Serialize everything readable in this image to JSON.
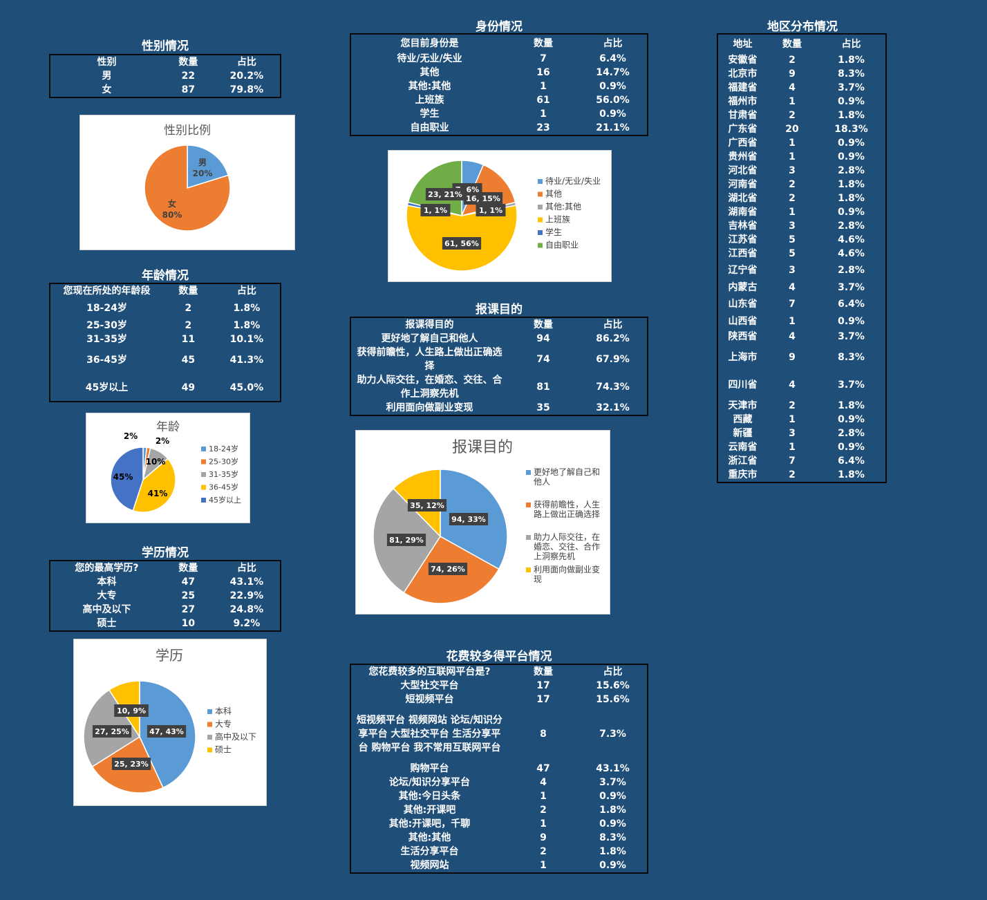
{
  "colors": {
    "blue": "#5b9bd5",
    "orange": "#ed7d31",
    "gray": "#a5a5a5",
    "gold": "#ffc000",
    "darkblue": "#4472c4",
    "green": "#70ad47",
    "bg": "#1f4e79"
  },
  "gender": {
    "title": "性别情况",
    "headers": [
      "性别",
      "数量",
      "占比"
    ],
    "rows": [
      [
        "男",
        "22",
        "20.2%"
      ],
      [
        "女",
        "87",
        "79.8%"
      ]
    ]
  },
  "age": {
    "title": "年龄情况",
    "headers": [
      "您现在所处的年龄段",
      "数量",
      "占比"
    ],
    "rows": [
      [
        "18-24岁",
        "2",
        "1.8%"
      ],
      [
        "25-30岁",
        "2",
        "1.8%"
      ],
      [
        "31-35岁",
        "11",
        "10.1%"
      ],
      [
        "36-45岁",
        "45",
        "41.3%"
      ],
      [
        "45岁以上",
        "49",
        "45.0%"
      ]
    ]
  },
  "education": {
    "title": "学历情况",
    "headers": [
      "您的最高学历?",
      "数量",
      "占比"
    ],
    "rows": [
      [
        "本科",
        "47",
        "43.1%"
      ],
      [
        "大专",
        "25",
        "22.9%"
      ],
      [
        "高中及以下",
        "27",
        "24.8%"
      ],
      [
        "硕士",
        "10",
        "9.2%"
      ]
    ]
  },
  "identity": {
    "title": "身份情况",
    "headers": [
      "您目前身份是",
      "数量",
      "占比"
    ],
    "rows": [
      [
        "待业/无业/失业",
        "7",
        "6.4%"
      ],
      [
        "其他",
        "16",
        "14.7%"
      ],
      [
        "其他:其他",
        "1",
        "0.9%"
      ],
      [
        "上班族",
        "61",
        "56.0%"
      ],
      [
        "学生",
        "1",
        "0.9%"
      ],
      [
        "自由职业",
        "23",
        "21.1%"
      ]
    ]
  },
  "purpose": {
    "title": "报课目的",
    "headers": [
      "报课得目的",
      "数量",
      "占比"
    ],
    "rows": [
      [
        "更好地了解自己和他人",
        "94",
        "86.2%"
      ],
      [
        "获得前瞻性，人生路上做出正确选择",
        "74",
        "67.9%"
      ],
      [
        "助力人际交往，在婚恋、交往、合作上洞察先机",
        "81",
        "74.3%"
      ],
      [
        "利用面向做副业变现",
        "35",
        "32.1%"
      ]
    ]
  },
  "platform": {
    "title": "花费较多得平台情况",
    "headers": [
      "您花费较多的互联网平台是?",
      "数量",
      "占比"
    ],
    "rows": [
      [
        "大型社交平台",
        "17",
        "15.6%"
      ],
      [
        "短视频平台",
        "17",
        "15.6%"
      ],
      [
        "短视频平台 视频网站 论坛/知识分享平台 大型社交平台 生活分享平台 购物平台 我不常用互联网平台",
        "8",
        "7.3%"
      ],
      [
        "购物平台",
        "47",
        "43.1%"
      ],
      [
        "论坛/知识分享平台",
        "4",
        "3.7%"
      ],
      [
        "其他:今日头条",
        "1",
        "0.9%"
      ],
      [
        "其他:开课吧",
        "2",
        "1.8%"
      ],
      [
        "其他:开课吧，千聊",
        "1",
        "0.9%"
      ],
      [
        "其他:其他",
        "9",
        "8.3%"
      ],
      [
        "生活分享平台",
        "2",
        "1.8%"
      ],
      [
        "视频网站",
        "1",
        "0.9%"
      ]
    ]
  },
  "region": {
    "title": "地区分布情况",
    "headers": [
      "地址",
      "数量",
      "占比"
    ],
    "rows": [
      [
        "安徽省",
        "2",
        "1.8%"
      ],
      [
        "北京市",
        "9",
        "8.3%"
      ],
      [
        "福建省",
        "4",
        "3.7%"
      ],
      [
        "福州市",
        "1",
        "0.9%"
      ],
      [
        "甘肃省",
        "2",
        "1.8%"
      ],
      [
        "广东省",
        "20",
        "18.3%"
      ],
      [
        "广西省",
        "1",
        "0.9%"
      ],
      [
        "贵州省",
        "1",
        "0.9%"
      ],
      [
        "河北省",
        "3",
        "2.8%"
      ],
      [
        "河南省",
        "2",
        "1.8%"
      ],
      [
        "湖北省",
        "2",
        "1.8%"
      ],
      [
        "湖南省",
        "1",
        "0.9%"
      ],
      [
        "吉林省",
        "3",
        "2.8%"
      ],
      [
        "江苏省",
        "5",
        "4.6%"
      ],
      [
        "江西省",
        "5",
        "4.6%"
      ],
      [
        "辽宁省",
        "3",
        "2.8%"
      ],
      [
        "内蒙古",
        "4",
        "3.7%"
      ],
      [
        "山东省",
        "7",
        "6.4%"
      ],
      [
        "山西省",
        "1",
        "0.9%"
      ],
      [
        "陕西省",
        "4",
        "3.7%"
      ],
      [
        "上海市",
        "9",
        "8.3%"
      ],
      [
        "四川省",
        "4",
        "3.7%"
      ],
      [
        "天津市",
        "2",
        "1.8%"
      ],
      [
        "西藏",
        "1",
        "0.9%"
      ],
      [
        "新疆",
        "3",
        "2.8%"
      ],
      [
        "云南省",
        "1",
        "0.9%"
      ],
      [
        "浙江省",
        "7",
        "6.4%"
      ],
      [
        "重庆市",
        "2",
        "1.8%"
      ]
    ]
  },
  "chart_data": [
    {
      "id": "gender-pie",
      "type": "pie",
      "title": "性别比例",
      "categories": [
        "男",
        "女"
      ],
      "values": [
        22,
        87
      ],
      "labels": [
        "20%",
        "80%"
      ],
      "legend": "none"
    },
    {
      "id": "identity-pie",
      "type": "pie",
      "title": "",
      "categories": [
        "待业/无业/失业",
        "其他",
        "其他:其他",
        "上班族",
        "学生",
        "自由职业"
      ],
      "values": [
        7,
        16,
        1,
        61,
        1,
        23
      ],
      "labels": [
        "7, 6%",
        "16, 15%",
        "1, 1%",
        "61, 56%",
        "1, 1%",
        "23, 21%"
      ],
      "legend": "right"
    },
    {
      "id": "age-pie",
      "type": "pie",
      "title": "年龄",
      "categories": [
        "18-24岁",
        "25-30岁",
        "31-35岁",
        "36-45岁",
        "45岁以上"
      ],
      "values": [
        2,
        2,
        11,
        45,
        49
      ],
      "labels": [
        "2%",
        "2%",
        "10%",
        "41%",
        "45%"
      ],
      "legend": "right"
    },
    {
      "id": "purpose-pie",
      "type": "pie",
      "title": "报课目的",
      "categories": [
        "更好地了解自己和他人",
        "获得前瞻性，人生路上做出正确选择",
        "助力人际交往，在婚恋、交往、合作上洞察先机",
        "利用面向做副业变现"
      ],
      "values": [
        94,
        74,
        81,
        35
      ],
      "labels": [
        "94, 33%",
        "74, 26%",
        "81, 29%",
        "35, 12%"
      ],
      "legend": "right"
    },
    {
      "id": "education-pie",
      "type": "pie",
      "title": "学历",
      "categories": [
        "本科",
        "大专",
        "高中及以下",
        "硕士"
      ],
      "values": [
        47,
        25,
        27,
        10
      ],
      "labels": [
        "47, 43%",
        "25, 23%",
        "27, 25%",
        "10, 9%"
      ],
      "legend": "right"
    }
  ]
}
